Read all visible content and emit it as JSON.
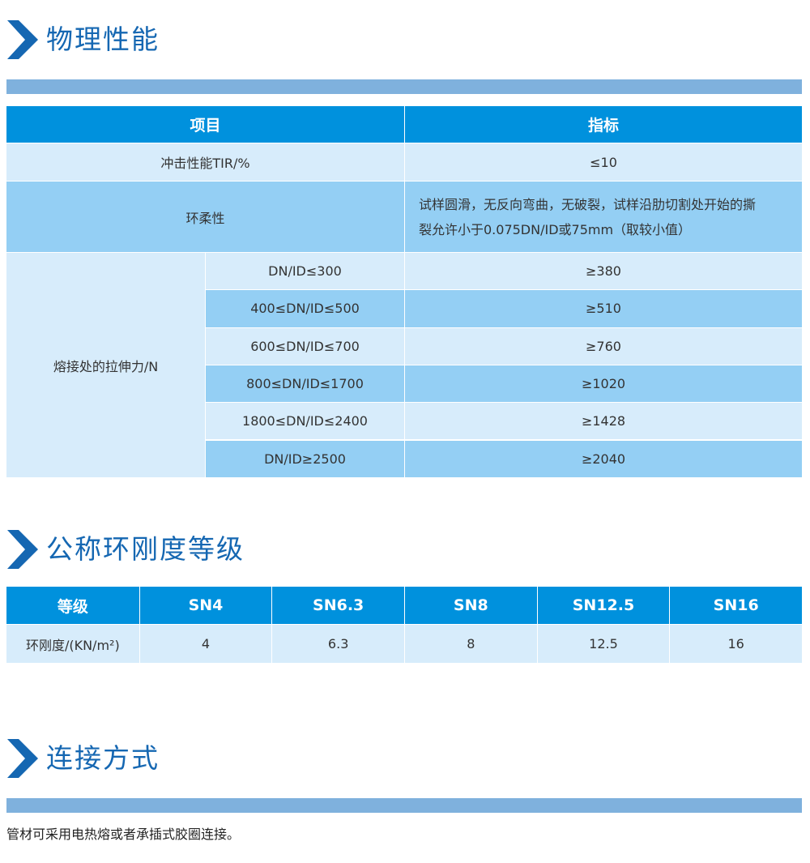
{
  "colors": {
    "title": "#1567b2",
    "header": "#0091dd",
    "row_light": "#d7ecfb",
    "row_mid": "#94cff4",
    "bar": "#7fb1dd"
  },
  "section1": {
    "icon": "chevron-right-icon",
    "title": "物理性能",
    "headers": [
      "项目",
      "指标"
    ],
    "impact": {
      "label": "冲击性能TIR/%",
      "value": "≤10"
    },
    "flex": {
      "label": "环柔性",
      "value_lines": [
        "试样圆滑，无反向弯曲，无破裂，试样沿肋切割处开始的撕",
        "裂允许小于0.075DN/ID或75mm（取较小值）"
      ]
    },
    "tension": {
      "label": "熔接处的拉伸力/N",
      "rows": [
        {
          "range": "DN/ID≤300",
          "value": "≥380"
        },
        {
          "range": "400≤DN/ID≤500",
          "value": "≥510"
        },
        {
          "range": "600≤DN/ID≤700",
          "value": "≥760"
        },
        {
          "range": "800≤DN/ID≤1700",
          "value": "≥1020"
        },
        {
          "range": "1800≤DN/ID≤2400",
          "value": "≥1428"
        },
        {
          "range": "DN/ID≥2500",
          "value": "≥2040"
        }
      ]
    }
  },
  "section2": {
    "icon": "chevron-right-icon",
    "title": "公称环刚度等级",
    "headers": [
      "等级",
      "SN4",
      "SN6.3",
      "SN8",
      "SN12.5",
      "SN16"
    ],
    "row": [
      "环刚度/(KN/m²)",
      "4",
      "6.3",
      "8",
      "12.5",
      "16"
    ]
  },
  "section3": {
    "icon": "chevron-right-icon",
    "title": "连接方式",
    "text": "管材可采用电热熔或者承插式胶圈连接。"
  }
}
